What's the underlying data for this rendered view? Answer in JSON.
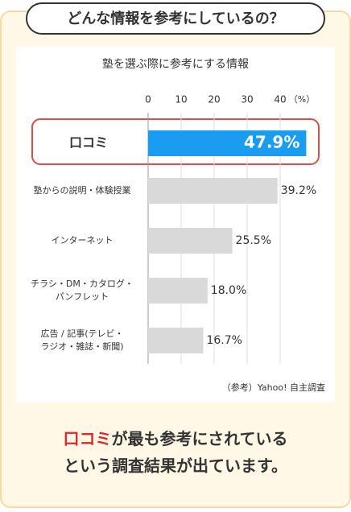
{
  "header": {
    "title": "どんな情報を参考にしているの？"
  },
  "chart_data": {
    "type": "hbar",
    "title": "塾を選ぶ際に参考にする情報",
    "categories": [
      "口コミ",
      "塾からの説明・体験授業",
      "インターネット",
      "チラシ・DM・カタログ・\nパンフレット",
      "広告 / 記事(テレビ・\nラジオ・雑誌・新聞)"
    ],
    "values": [
      47.9,
      39.2,
      25.5,
      18.0,
      16.7
    ],
    "value_labels": [
      "47.9%",
      "39.2%",
      "25.5%",
      "18.0%",
      "16.7%"
    ],
    "colors": [
      "#1a9cf0",
      "#d9d9d9",
      "#d9d9d9",
      "#d9d9d9",
      "#d9d9d9"
    ],
    "xlim": [
      0,
      50
    ],
    "xticks": [
      0,
      10,
      20,
      30,
      40
    ],
    "x_unit_label": "（%）",
    "grid": true,
    "source": "（参考）Yahoo! 自主調査"
  },
  "footer": {
    "highlight": "口コミ",
    "line1_rest": "が最も参考にされている",
    "line2": "という調査結果が出ています。"
  }
}
